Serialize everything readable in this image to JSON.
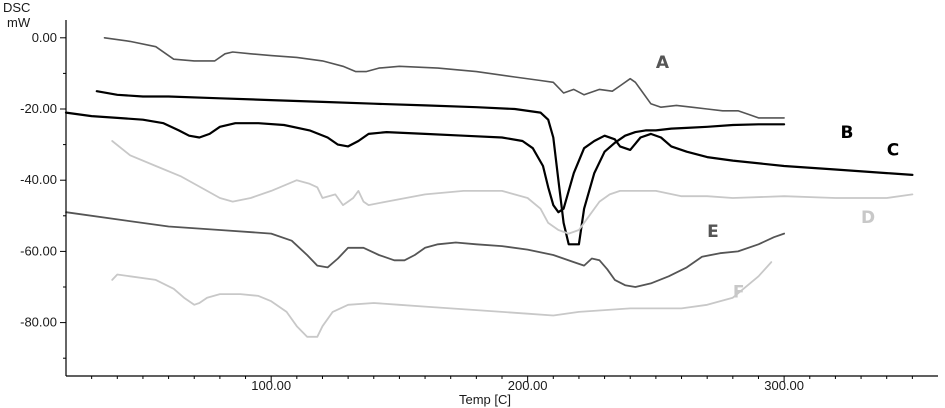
{
  "chart_data": {
    "type": "line",
    "ylabel_line1": "DSC",
    "ylabel_line2": "mW",
    "xlabel": "Temp [C]",
    "xlim": [
      20,
      360
    ],
    "ylim": [
      -95,
      5
    ],
    "x_ticks": [
      {
        "value": 100,
        "label": "100.00"
      },
      {
        "value": 200,
        "label": "200.00"
      },
      {
        "value": 300,
        "label": "300.00"
      }
    ],
    "y_ticks": [
      {
        "value": 0,
        "label": "0.00"
      },
      {
        "value": -20,
        "label": "-20.00"
      },
      {
        "value": -40,
        "label": "-40.00"
      },
      {
        "value": -60,
        "label": "-60.00"
      },
      {
        "value": -80,
        "label": "-80.00"
      }
    ],
    "grid": false,
    "series": [
      {
        "name": "A",
        "color": "#555555",
        "width": 1.6,
        "label_at": [
          250,
          -8.5
        ],
        "x": [
          35,
          45,
          55,
          62,
          70,
          78,
          82,
          85,
          92,
          100,
          110,
          120,
          128,
          133,
          137,
          142,
          150,
          165,
          180,
          195,
          205,
          210,
          212,
          214,
          218,
          222,
          228,
          233,
          236,
          240,
          242,
          244,
          248,
          252,
          258,
          264,
          270,
          276,
          282,
          286,
          290,
          295,
          300
        ],
        "y": [
          0,
          -1,
          -2.5,
          -6,
          -6.5,
          -6.5,
          -4.5,
          -4,
          -4.5,
          -5,
          -5.5,
          -6.5,
          -8,
          -9.5,
          -9.5,
          -8.5,
          -8,
          -8.5,
          -9.5,
          -11,
          -12,
          -12.5,
          -14,
          -15.5,
          -14.5,
          -16,
          -14.5,
          -15,
          -13.5,
          -11.5,
          -12.5,
          -14.5,
          -18.5,
          -19.5,
          -19,
          -19.5,
          -20,
          -20.5,
          -20.5,
          -21.5,
          -22.5,
          -22.5,
          -22.5
        ]
      },
      {
        "name": "B",
        "color": "#000000",
        "width": 2.2,
        "label_at": [
          322,
          -28.2
        ],
        "x": [
          32,
          40,
          50,
          60,
          80,
          100,
          120,
          140,
          160,
          180,
          195,
          205,
          208,
          210,
          212,
          214,
          216,
          218,
          220,
          222,
          226,
          230,
          234,
          238,
          242,
          246,
          250,
          256,
          262,
          270,
          280,
          290,
          300
        ],
        "y": [
          -15,
          -16,
          -16.5,
          -16.5,
          -17,
          -17.5,
          -18,
          -18.5,
          -19,
          -19.5,
          -20,
          -21,
          -23,
          -28,
          -40,
          -52,
          -58,
          -58,
          -58,
          -48,
          -38,
          -32,
          -29.5,
          -27.5,
          -26.5,
          -26,
          -26,
          -25.5,
          -25.3,
          -25,
          -24.5,
          -24.3,
          -24.3
        ]
      },
      {
        "name": "C",
        "color": "#000000",
        "width": 2.2,
        "label_at": [
          340,
          -33
        ],
        "x": [
          20,
          30,
          40,
          50,
          58,
          64,
          68,
          72,
          76,
          80,
          86,
          95,
          105,
          115,
          122,
          126,
          130,
          134,
          138,
          145,
          160,
          175,
          190,
          198,
          202,
          206,
          208,
          210,
          212,
          214,
          218,
          222,
          226,
          230,
          234,
          236,
          240,
          244,
          248,
          252,
          256,
          262,
          270,
          280,
          300,
          320,
          340,
          350
        ],
        "y": [
          -21,
          -22,
          -22.5,
          -23,
          -24,
          -26,
          -27.5,
          -28,
          -27,
          -25,
          -24,
          -24,
          -24.5,
          -26,
          -28,
          -30,
          -30.5,
          -29,
          -27,
          -26.5,
          -27,
          -27.5,
          -28,
          -29,
          -31,
          -36,
          -42,
          -47,
          -49,
          -48,
          -38,
          -31,
          -29,
          -27.5,
          -28.5,
          -30.5,
          -31.5,
          -28,
          -27,
          -28,
          -30.5,
          -32,
          -33.5,
          -34.5,
          -36,
          -37,
          -38,
          -38.5
        ]
      },
      {
        "name": "D",
        "color": "#c8c8c8",
        "width": 1.8,
        "label_at": [
          330,
          -52
        ],
        "x": [
          38,
          45,
          55,
          65,
          75,
          80,
          85,
          92,
          100,
          110,
          115,
          118,
          120,
          125,
          128,
          130,
          132,
          134,
          136,
          138,
          145,
          160,
          175,
          190,
          200,
          205,
          208,
          212,
          216,
          220,
          224,
          228,
          232,
          236,
          240,
          250,
          260,
          270,
          280,
          300,
          320,
          340,
          350
        ],
        "y": [
          -29,
          -33,
          -36,
          -39,
          -43,
          -45,
          -46,
          -45,
          -43,
          -40,
          -41,
          -42,
          -45,
          -44,
          -47,
          -46,
          -45,
          -43,
          -46,
          -47,
          -46,
          -44,
          -43,
          -43,
          -45,
          -48,
          -52,
          -54,
          -55,
          -54,
          -50,
          -46,
          -44,
          -43,
          -43,
          -43,
          -44.5,
          -44.5,
          -45,
          -44.5,
          -45,
          -45,
          -44
        ]
      },
      {
        "name": "E",
        "color": "#555555",
        "width": 1.8,
        "label_at": [
          270,
          -56
        ],
        "x": [
          20,
          40,
          60,
          80,
          100,
          108,
          114,
          118,
          122,
          126,
          130,
          136,
          142,
          148,
          152,
          156,
          160,
          165,
          172,
          180,
          190,
          200,
          210,
          218,
          222,
          225,
          228,
          231,
          234,
          238,
          242,
          248,
          255,
          262,
          268,
          275,
          282,
          290,
          296,
          300
        ],
        "y": [
          -49,
          -51,
          -53,
          -54,
          -55,
          -57,
          -61,
          -64,
          -64.5,
          -62,
          -59,
          -59,
          -61,
          -62.5,
          -62.5,
          -61,
          -59,
          -58,
          -57.5,
          -58,
          -58.5,
          -59.5,
          -61,
          -63,
          -64,
          -62,
          -62.5,
          -65,
          -68,
          -69.5,
          -70,
          -69,
          -67,
          -64.5,
          -61.5,
          -60.5,
          -60,
          -58,
          -56,
          -55
        ]
      },
      {
        "name": "F",
        "color": "#c8c8c8",
        "width": 1.8,
        "label_at": [
          280,
          -73
        ],
        "x": [
          38,
          40,
          45,
          55,
          62,
          66,
          70,
          72,
          75,
          80,
          88,
          95,
          100,
          106,
          110,
          114,
          118,
          120,
          124,
          130,
          140,
          150,
          160,
          170,
          180,
          190,
          200,
          210,
          220,
          230,
          240,
          250,
          260,
          270,
          280,
          290,
          295
        ],
        "y": [
          -68,
          -66.5,
          -67,
          -68,
          -70.5,
          -73,
          -75,
          -74.5,
          -73,
          -72,
          -72,
          -72.5,
          -74,
          -77,
          -81,
          -84,
          -84,
          -81,
          -77,
          -75,
          -74.5,
          -75,
          -75.5,
          -76,
          -76.5,
          -77,
          -77.5,
          -78,
          -77,
          -76.5,
          -76,
          -76,
          -76,
          -75,
          -73,
          -67,
          -63
        ]
      }
    ]
  }
}
